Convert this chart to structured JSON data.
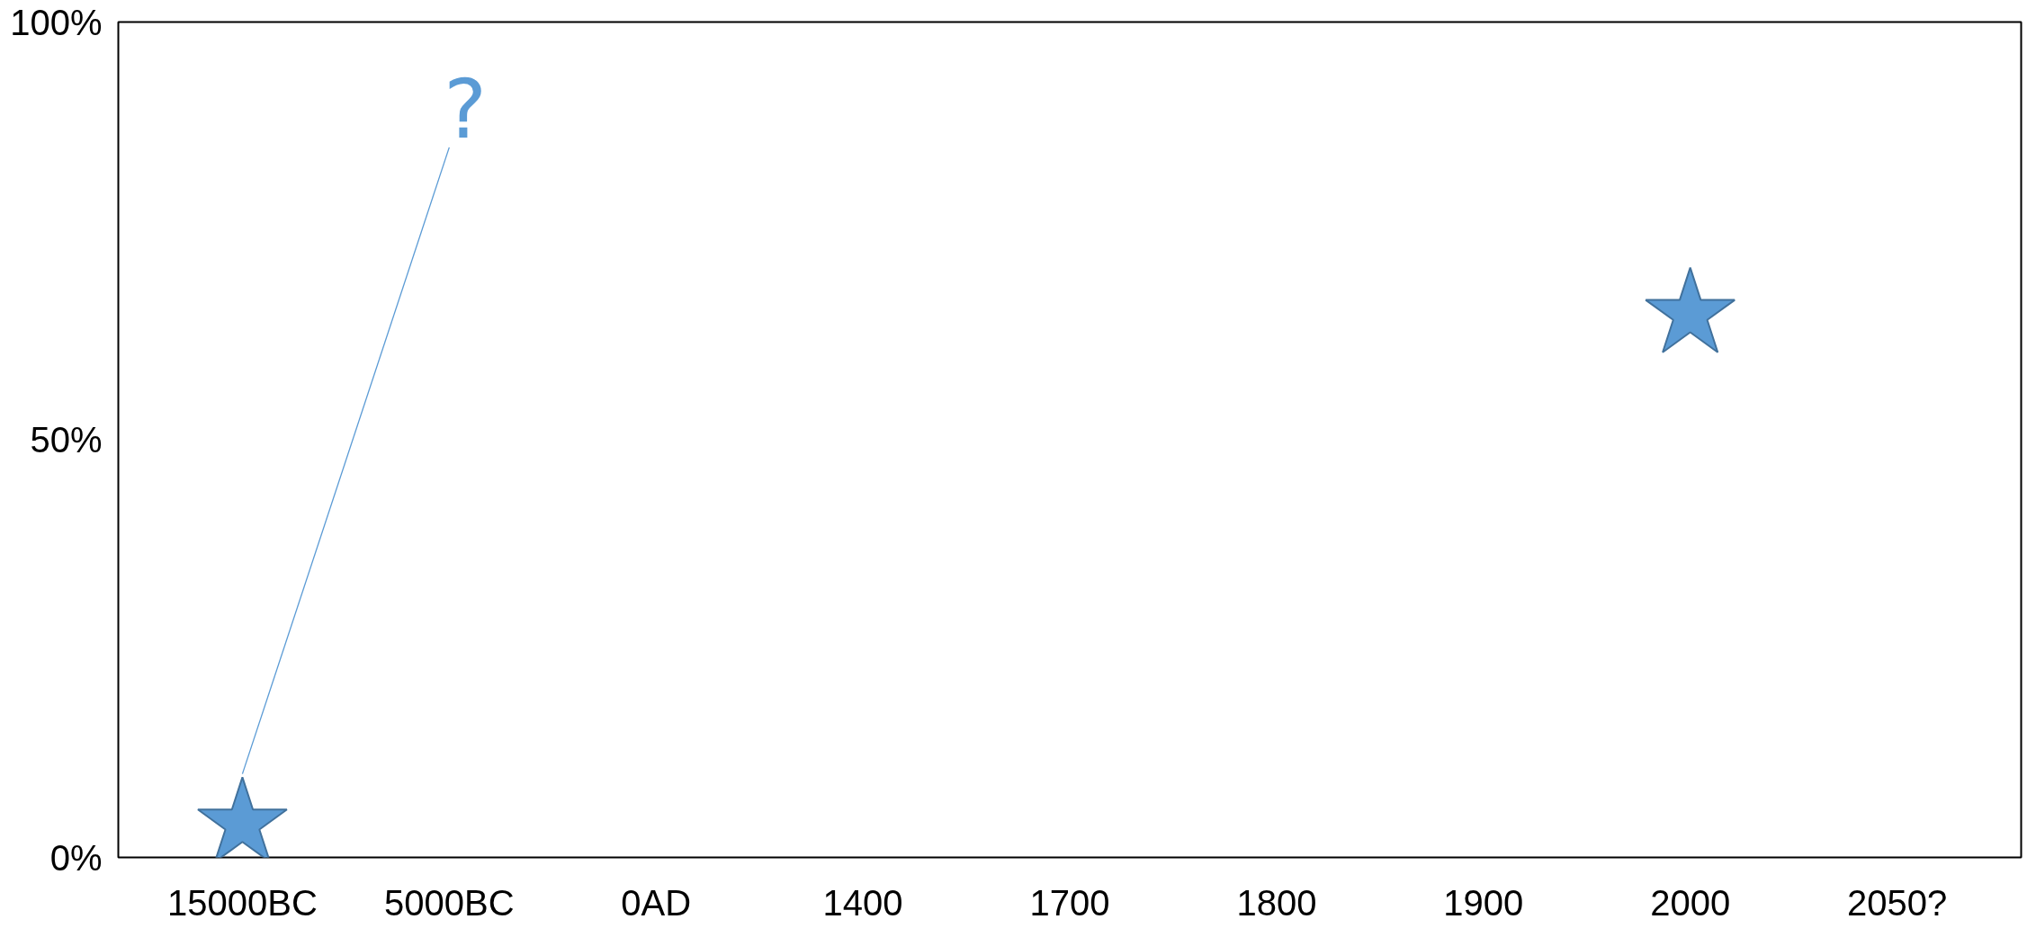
{
  "chart_data": {
    "type": "scatter",
    "categories": [
      "15000BC",
      "5000BC",
      "0AD",
      "1400",
      "1700",
      "1800",
      "1900",
      "2000",
      "2050?"
    ],
    "ylim": [
      0,
      100
    ],
    "yticks": [
      {
        "value": 0,
        "label": "0%"
      },
      {
        "value": 50,
        "label": "50%"
      },
      {
        "value": 100,
        "label": "100%"
      }
    ],
    "series": [
      {
        "type": "line",
        "color": "#5b9bd5",
        "values": [
          10,
          85,
          null,
          null,
          null,
          null,
          null,
          null,
          null
        ],
        "value_labels": [
          null,
          "?",
          null,
          null,
          null,
          null,
          null,
          null,
          null
        ]
      },
      {
        "color": "#5b9bd5",
        "values": [
          4,
          null,
          null,
          null,
          null,
          null,
          null,
          65,
          null
        ],
        "marker": "star"
      }
    ],
    "grid": false
  }
}
